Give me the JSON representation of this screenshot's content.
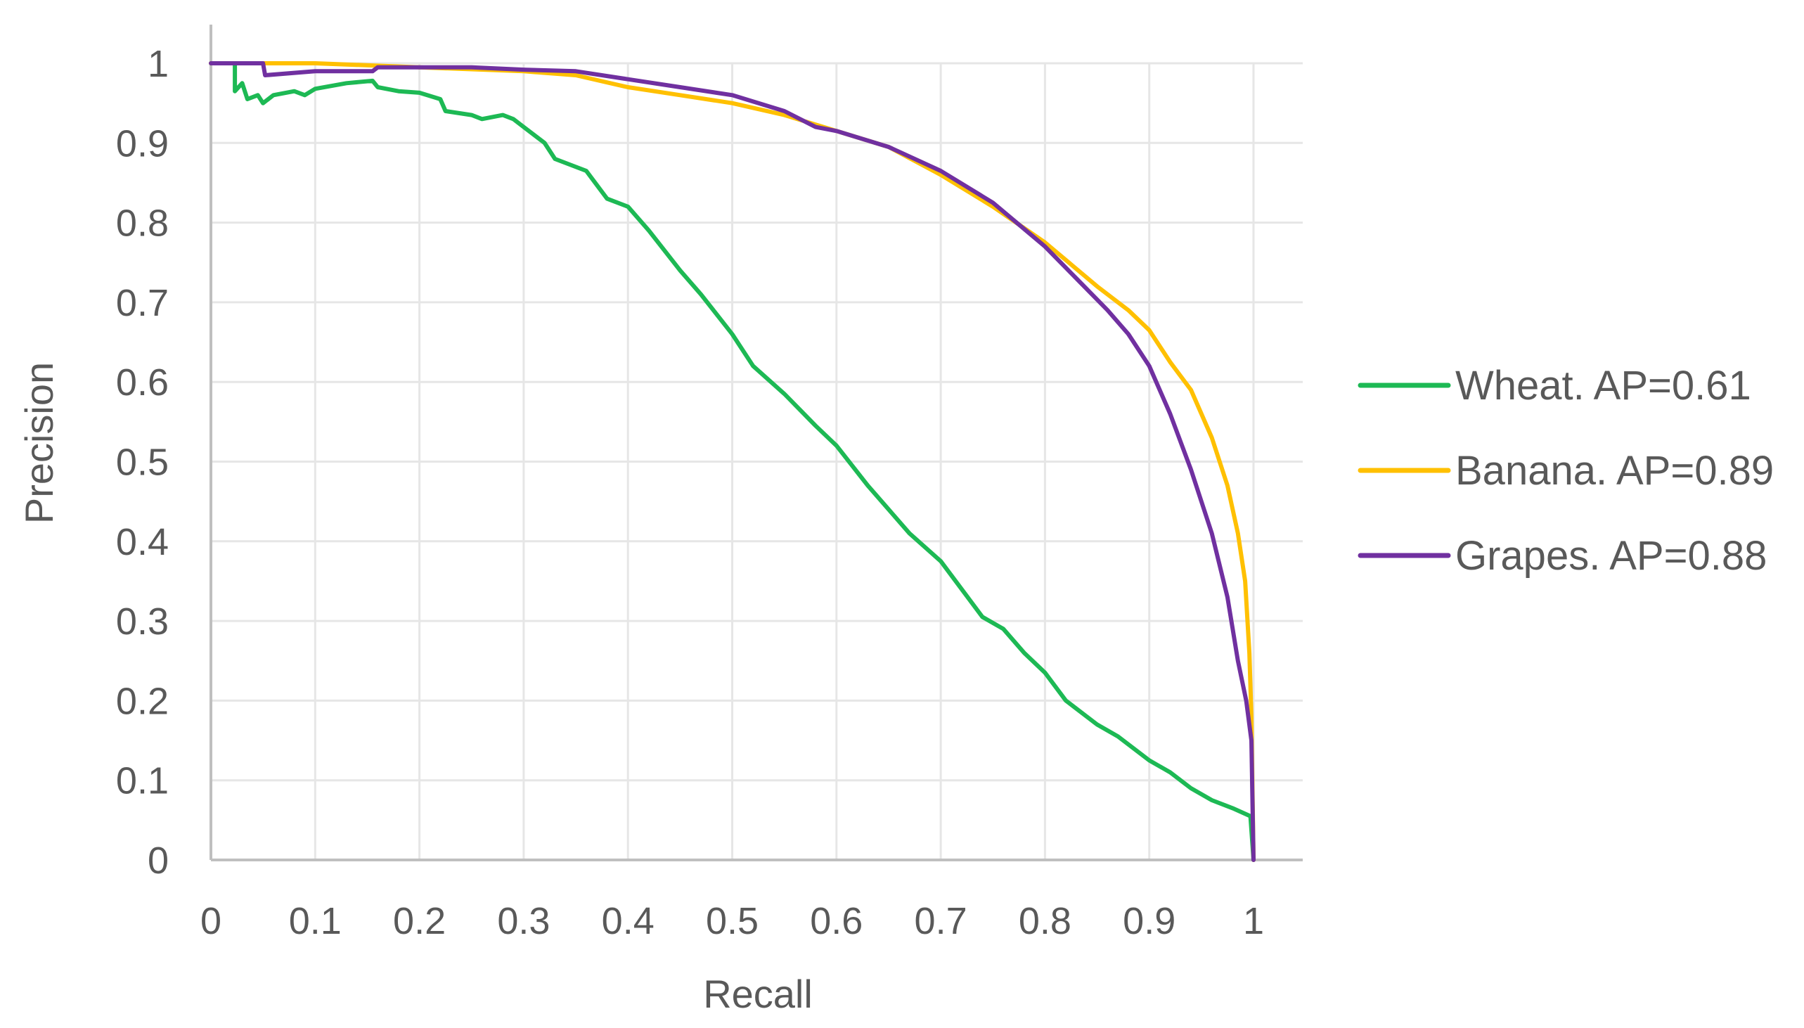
{
  "chart_data": {
    "type": "line",
    "title": "",
    "xlabel": "Recall",
    "ylabel": "Precision",
    "xlim": [
      0,
      1
    ],
    "ylim": [
      0,
      1
    ],
    "x_ticks": [
      "0",
      "0.1",
      "0.2",
      "0.3",
      "0.4",
      "0.5",
      "0.6",
      "0.7",
      "0.8",
      "0.9",
      "1"
    ],
    "y_ticks": [
      "0",
      "0.1",
      "0.2",
      "0.3",
      "0.4",
      "0.5",
      "0.6",
      "0.7",
      "0.8",
      "0.9",
      "1"
    ],
    "grid": true,
    "legend_position": "right",
    "series": [
      {
        "name": "Wheat. AP=0.61",
        "color": "#1db954",
        "points": [
          [
            0,
            1
          ],
          [
            0.023,
            1
          ],
          [
            0.023,
            0.965
          ],
          [
            0.03,
            0.975
          ],
          [
            0.035,
            0.955
          ],
          [
            0.045,
            0.96
          ],
          [
            0.05,
            0.95
          ],
          [
            0.06,
            0.96
          ],
          [
            0.08,
            0.965
          ],
          [
            0.09,
            0.96
          ],
          [
            0.1,
            0.968
          ],
          [
            0.13,
            0.975
          ],
          [
            0.155,
            0.978
          ],
          [
            0.16,
            0.97
          ],
          [
            0.18,
            0.965
          ],
          [
            0.2,
            0.963
          ],
          [
            0.22,
            0.955
          ],
          [
            0.225,
            0.94
          ],
          [
            0.25,
            0.935
          ],
          [
            0.26,
            0.93
          ],
          [
            0.28,
            0.935
          ],
          [
            0.29,
            0.93
          ],
          [
            0.3,
            0.92
          ],
          [
            0.32,
            0.9
          ],
          [
            0.33,
            0.88
          ],
          [
            0.36,
            0.865
          ],
          [
            0.38,
            0.83
          ],
          [
            0.4,
            0.82
          ],
          [
            0.42,
            0.79
          ],
          [
            0.45,
            0.74
          ],
          [
            0.47,
            0.71
          ],
          [
            0.5,
            0.66
          ],
          [
            0.52,
            0.62
          ],
          [
            0.55,
            0.585
          ],
          [
            0.58,
            0.545
          ],
          [
            0.6,
            0.52
          ],
          [
            0.63,
            0.47
          ],
          [
            0.65,
            0.44
          ],
          [
            0.67,
            0.41
          ],
          [
            0.7,
            0.375
          ],
          [
            0.72,
            0.34
          ],
          [
            0.74,
            0.305
          ],
          [
            0.76,
            0.29
          ],
          [
            0.78,
            0.26
          ],
          [
            0.8,
            0.235
          ],
          [
            0.82,
            0.2
          ],
          [
            0.85,
            0.17
          ],
          [
            0.87,
            0.155
          ],
          [
            0.9,
            0.125
          ],
          [
            0.92,
            0.11
          ],
          [
            0.94,
            0.09
          ],
          [
            0.96,
            0.075
          ],
          [
            0.98,
            0.065
          ],
          [
            0.997,
            0.055
          ],
          [
            1,
            0
          ]
        ]
      },
      {
        "name": "Banana. AP=0.89",
        "color": "#ffc000",
        "points": [
          [
            0,
            1
          ],
          [
            0.1,
            1
          ],
          [
            0.2,
            0.995
          ],
          [
            0.3,
            0.99
          ],
          [
            0.35,
            0.985
          ],
          [
            0.4,
            0.97
          ],
          [
            0.45,
            0.96
          ],
          [
            0.5,
            0.95
          ],
          [
            0.55,
            0.935
          ],
          [
            0.6,
            0.915
          ],
          [
            0.65,
            0.895
          ],
          [
            0.7,
            0.86
          ],
          [
            0.75,
            0.82
          ],
          [
            0.8,
            0.775
          ],
          [
            0.85,
            0.72
          ],
          [
            0.88,
            0.69
          ],
          [
            0.9,
            0.665
          ],
          [
            0.92,
            0.625
          ],
          [
            0.94,
            0.59
          ],
          [
            0.96,
            0.53
          ],
          [
            0.975,
            0.47
          ],
          [
            0.985,
            0.41
          ],
          [
            0.992,
            0.35
          ],
          [
            0.996,
            0.26
          ],
          [
            0.998,
            0.18
          ],
          [
            1,
            0
          ]
        ]
      },
      {
        "name": "Grapes. AP=0.88",
        "color": "#7030a0",
        "points": [
          [
            0,
            1
          ],
          [
            0.05,
            1
          ],
          [
            0.052,
            0.985
          ],
          [
            0.1,
            0.99
          ],
          [
            0.155,
            0.99
          ],
          [
            0.16,
            0.995
          ],
          [
            0.25,
            0.995
          ],
          [
            0.3,
            0.992
          ],
          [
            0.35,
            0.99
          ],
          [
            0.4,
            0.98
          ],
          [
            0.45,
            0.97
          ],
          [
            0.5,
            0.96
          ],
          [
            0.55,
            0.94
          ],
          [
            0.58,
            0.92
          ],
          [
            0.6,
            0.915
          ],
          [
            0.65,
            0.895
          ],
          [
            0.7,
            0.865
          ],
          [
            0.75,
            0.825
          ],
          [
            0.8,
            0.77
          ],
          [
            0.83,
            0.73
          ],
          [
            0.86,
            0.69
          ],
          [
            0.88,
            0.66
          ],
          [
            0.9,
            0.62
          ],
          [
            0.92,
            0.56
          ],
          [
            0.94,
            0.49
          ],
          [
            0.96,
            0.41
          ],
          [
            0.975,
            0.33
          ],
          [
            0.985,
            0.25
          ],
          [
            0.993,
            0.2
          ],
          [
            0.998,
            0.15
          ],
          [
            1,
            0
          ]
        ]
      }
    ]
  }
}
